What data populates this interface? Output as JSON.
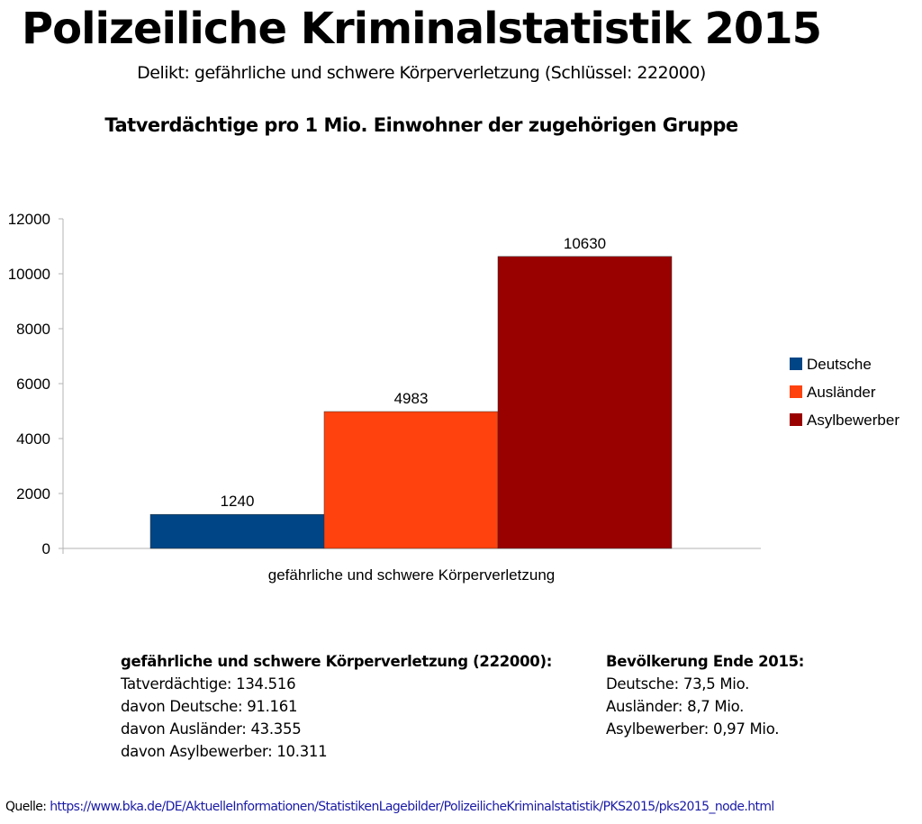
{
  "title": "Polizeiliche Kriminalstatistik 2015",
  "subtitle": "Delikt: gefährliche und schwere Körperverletzung (Schlüssel: 222000)",
  "chart_data": {
    "type": "bar",
    "title": "Tatverdächtige pro 1 Mio. Einwohner der zugehörigen Gruppe",
    "categories": [
      "gefährliche und schwere Körperverletzung"
    ],
    "series": [
      {
        "name": "Deutsche",
        "values": [
          1240
        ],
        "color": "#004586"
      },
      {
        "name": "Ausländer",
        "values": [
          4983
        ],
        "color": "#ff420e"
      },
      {
        "name": "Asylbewerber",
        "values": [
          10630
        ],
        "color": "#990000"
      }
    ],
    "data_labels": [
      "1240",
      "4983",
      "10630"
    ],
    "ylim": [
      0,
      12000
    ],
    "yticks": [
      "0",
      "2000",
      "4000",
      "6000",
      "8000",
      "10000",
      "12000"
    ],
    "grid": false,
    "legend": "right"
  },
  "stats": {
    "heading": "gefährliche und schwere Körperverletzung (222000):",
    "lines": [
      "Tatverdächtige: 134.516",
      "davon Deutsche: 91.161",
      "davon Ausländer: 43.355",
      "davon Asylbewerber: 10.311"
    ]
  },
  "population": {
    "heading": "Bevölkerung Ende 2015:",
    "lines": [
      "Deutsche: 73,5 Mio.",
      "Ausländer: 8,7 Mio.",
      "Asylbewerber: 0,97 Mio."
    ]
  },
  "source": {
    "label": "Quelle:",
    "url": "https://www.bka.de/DE/AktuelleInformationen/StatistikenLagebilder/PolizeilicheKriminalstatistik/PKS2015/pks2015_node.html"
  }
}
